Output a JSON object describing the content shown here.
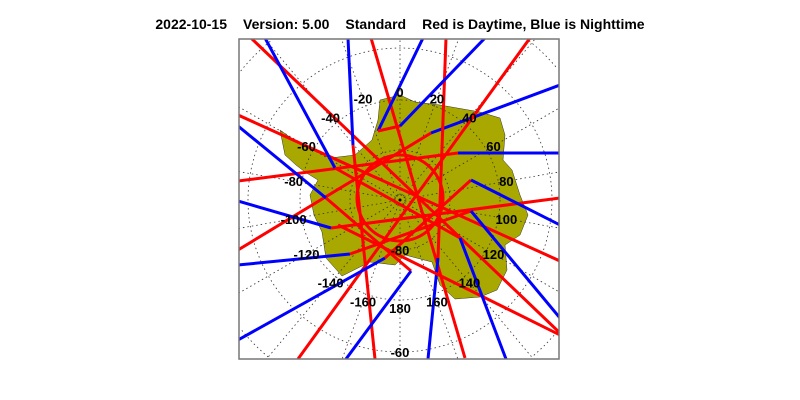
{
  "title": {
    "date": "2022-10-15",
    "version": "Version: 5.00",
    "product": "Standard",
    "legend": "Red is Daytime, Blue is Nighttime"
  },
  "map": {
    "projection": "south polar stereographic",
    "center": "South Pole",
    "land_color": "#a8a800",
    "day_color": "#ff0000",
    "night_color": "#0000ff",
    "graticule": "dotted",
    "longitude_labels": [
      "0",
      "20",
      "40",
      "60",
      "80",
      "100",
      "120",
      "140",
      "160",
      "180",
      "-160",
      "-140",
      "-120",
      "-100",
      "-80",
      "-60",
      "-40",
      "-20"
    ],
    "latitude_labels": [
      "-80",
      "-60"
    ]
  }
}
